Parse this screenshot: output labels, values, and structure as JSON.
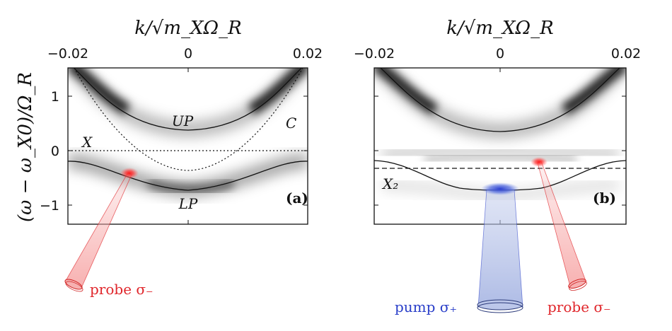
{
  "x_axis_label": "k/√m_XΩ_R",
  "y_axis_label": "(ω − ω_X0)/Ω_R",
  "x_ticks": [
    "−0.02",
    "0",
    "0.02"
  ],
  "y_ticks": [
    "1",
    "0",
    "−1"
  ],
  "panel_a": {
    "tag": "(a)",
    "labels": {
      "up": "UP",
      "lp": "LP",
      "cavity": "C",
      "exciton": "X"
    },
    "probe_label": "probe σ₋"
  },
  "panel_b": {
    "tag": "(b)",
    "labels": {
      "exciton2": "X₂"
    },
    "pump_label": "pump σ₊",
    "probe_label": "probe σ₋"
  },
  "colors": {
    "probe": "#e0262b",
    "pump": "#2a3fc9",
    "curve": "#111111"
  }
}
